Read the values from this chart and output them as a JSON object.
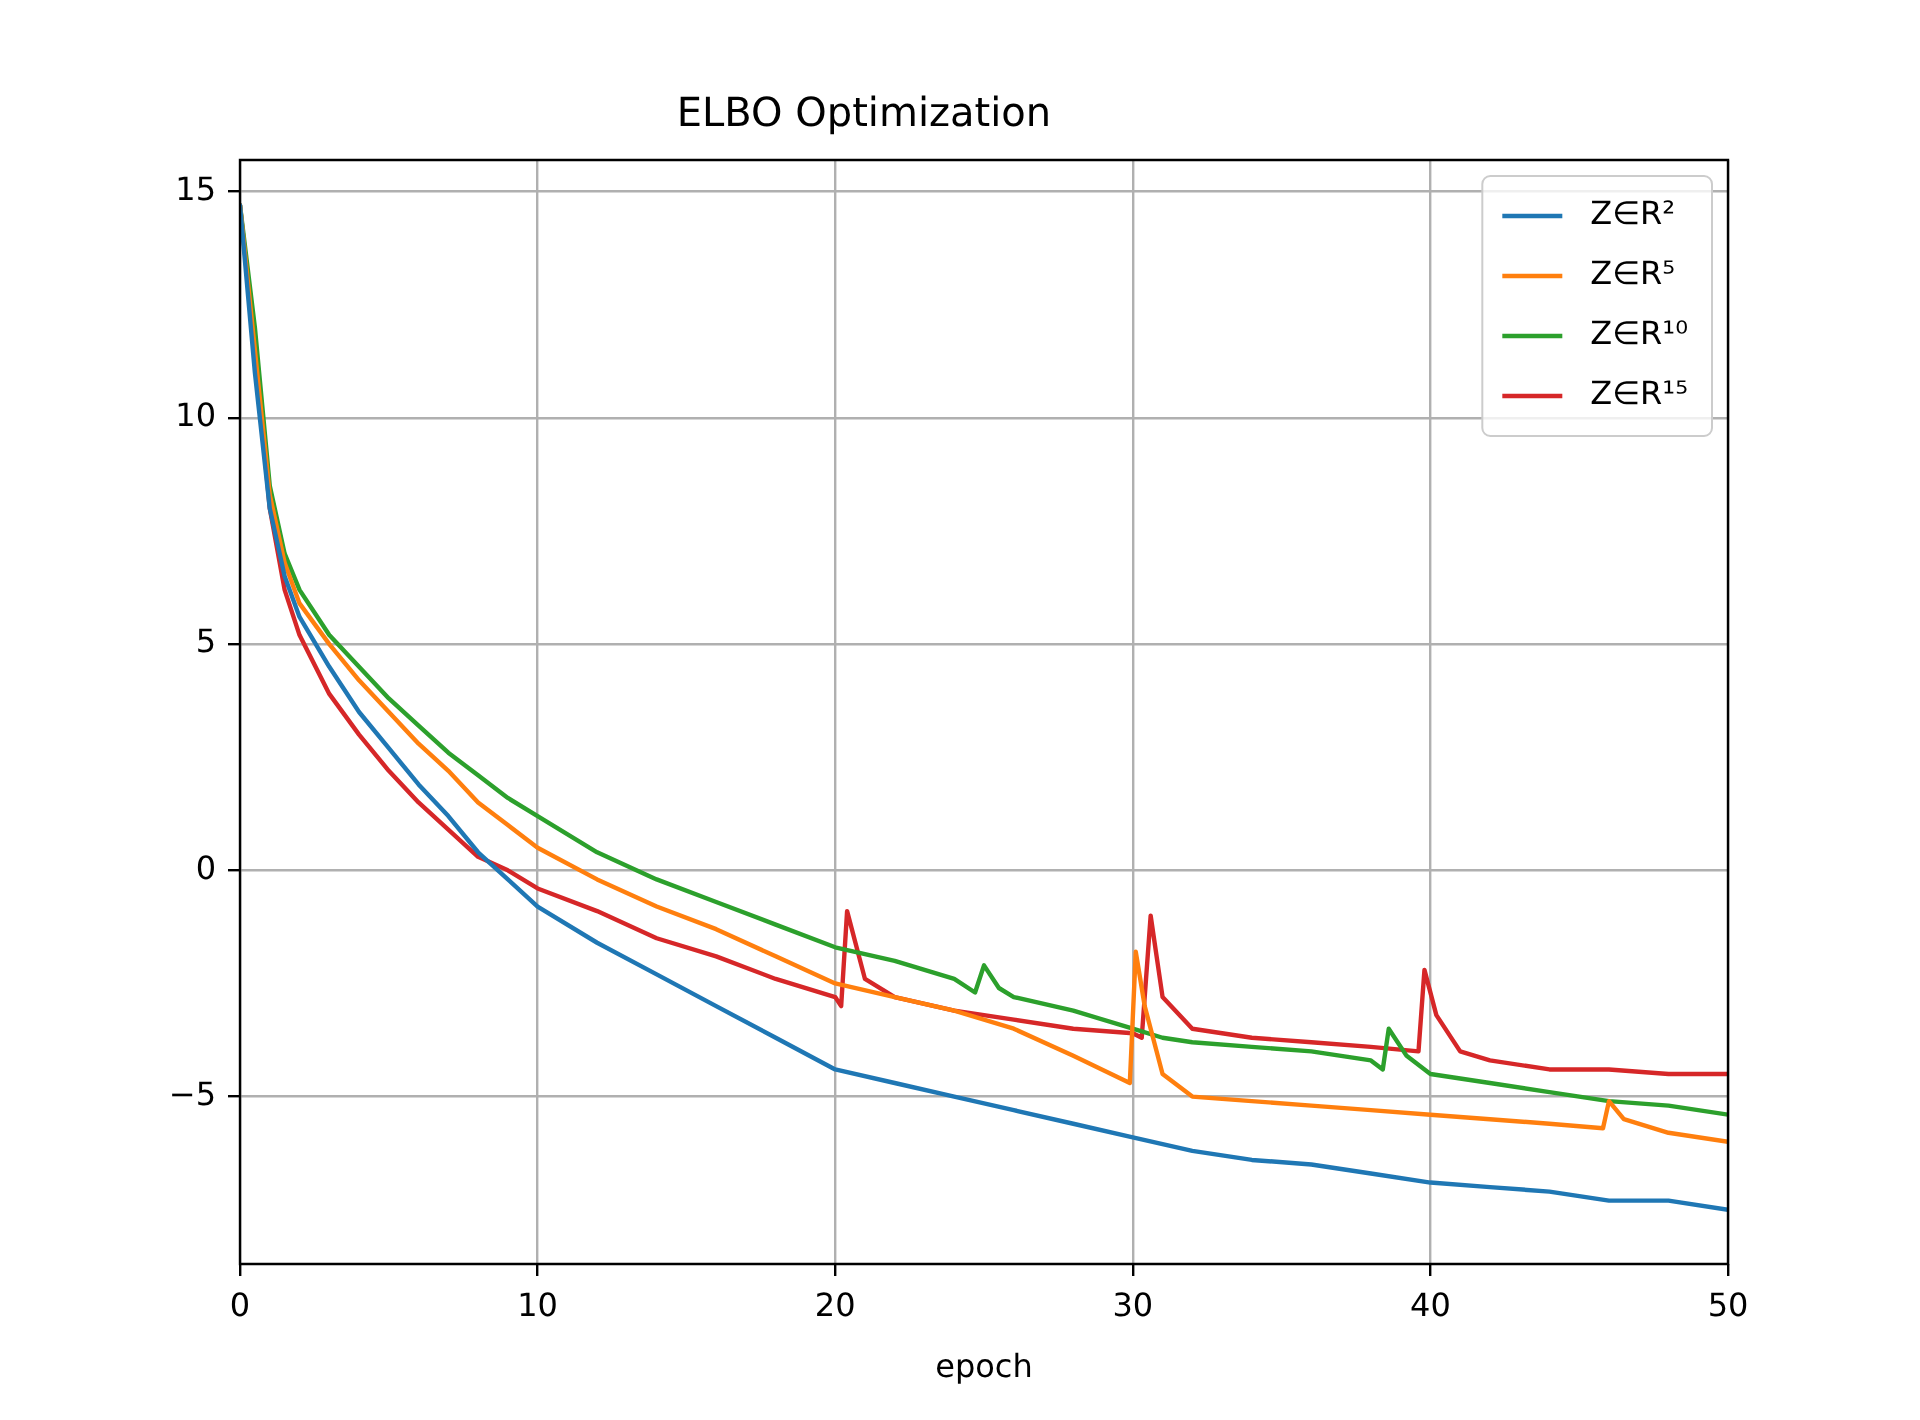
{
  "chart_data": {
    "type": "line",
    "title": "ELBO Optimization",
    "xlabel": "epoch",
    "xlim": [
      0,
      50
    ],
    "xticks": [
      0,
      10,
      20,
      30,
      40,
      50
    ],
    "ylim": [
      -8.7,
      15.7
    ],
    "yticks": [
      -5,
      0,
      5,
      10,
      15
    ],
    "grid": true,
    "legend": "top right",
    "marker": "none",
    "line_style": "solid",
    "series": [
      {
        "name": "Z∈R²",
        "color": "#1f77b4",
        "x": [
          0,
          0.5,
          1,
          1.5,
          2,
          3,
          4,
          5,
          6,
          7,
          8,
          9,
          10,
          12,
          14,
          16,
          18,
          20,
          22,
          24,
          26,
          28,
          30,
          32,
          34,
          36,
          38,
          40,
          42,
          44,
          46,
          48,
          50
        ],
        "values": [
          14.7,
          11,
          8,
          6.5,
          5.6,
          4.5,
          3.5,
          2.7,
          1.9,
          1.2,
          0.4,
          -0.2,
          -0.8,
          -1.6,
          -2.3,
          -3.0,
          -3.7,
          -4.4,
          -4.7,
          -5.0,
          -5.3,
          -5.6,
          -5.9,
          -6.2,
          -6.4,
          -6.5,
          -6.7,
          -6.9,
          -7.0,
          -7.1,
          -7.3,
          -7.3,
          -7.5
        ]
      },
      {
        "name": "Z∈R⁵",
        "color": "#ff7f0e",
        "x": [
          0,
          0.5,
          1,
          1.5,
          2,
          3,
          4,
          5,
          6,
          7,
          8,
          9,
          10,
          12,
          14,
          16,
          18,
          20,
          22,
          24,
          26,
          28,
          29.9,
          30.1,
          30.4,
          31,
          32,
          34,
          36,
          38,
          40,
          42,
          44,
          45.8,
          46,
          46.5,
          48,
          50
        ],
        "values": [
          14.7,
          11.5,
          8.3,
          6.8,
          5.9,
          5.0,
          4.2,
          3.5,
          2.8,
          2.2,
          1.5,
          1.0,
          0.5,
          -0.2,
          -0.8,
          -1.3,
          -1.9,
          -2.5,
          -2.8,
          -3.1,
          -3.5,
          -4.1,
          -4.7,
          -1.8,
          -3.0,
          -4.5,
          -5.0,
          -5.1,
          -5.2,
          -5.3,
          -5.4,
          -5.5,
          -5.6,
          -5.7,
          -5.1,
          -5.5,
          -5.8,
          -6.0
        ]
      },
      {
        "name": "Z∈R¹⁰",
        "color": "#2ca02c",
        "x": [
          0,
          0.5,
          1,
          1.5,
          2,
          3,
          4,
          5,
          6,
          7,
          8,
          9,
          10,
          12,
          14,
          16,
          18,
          20,
          22,
          24,
          24.7,
          25,
          25.5,
          26,
          28,
          30,
          31,
          32,
          34,
          36,
          38,
          38.4,
          38.6,
          39.2,
          40,
          42,
          44,
          46,
          48,
          50
        ],
        "values": [
          14.7,
          12,
          8.5,
          7.0,
          6.2,
          5.2,
          4.5,
          3.8,
          3.2,
          2.6,
          2.1,
          1.6,
          1.2,
          0.4,
          -0.2,
          -0.7,
          -1.2,
          -1.7,
          -2.0,
          -2.4,
          -2.7,
          -2.1,
          -2.6,
          -2.8,
          -3.1,
          -3.5,
          -3.7,
          -3.8,
          -3.9,
          -4.0,
          -4.2,
          -4.4,
          -3.5,
          -4.1,
          -4.5,
          -4.7,
          -4.9,
          -5.1,
          -5.2,
          -5.4
        ]
      },
      {
        "name": "Z∈R¹⁵",
        "color": "#d62728",
        "x": [
          0,
          0.5,
          1,
          1.5,
          2,
          3,
          4,
          5,
          6,
          7,
          8,
          9,
          10,
          12,
          14,
          16,
          18,
          20,
          20.2,
          20.4,
          21,
          22,
          24,
          26,
          28,
          30,
          30.3,
          30.6,
          31,
          32,
          34,
          36,
          38,
          39.6,
          39.8,
          40.2,
          41,
          42,
          44,
          46,
          48,
          50
        ],
        "values": [
          14.7,
          11.5,
          8.0,
          6.2,
          5.2,
          3.9,
          3.0,
          2.2,
          1.5,
          0.9,
          0.3,
          0,
          -0.4,
          -0.9,
          -1.5,
          -1.9,
          -2.4,
          -2.8,
          -3.0,
          -0.9,
          -2.4,
          -2.8,
          -3.1,
          -3.3,
          -3.5,
          -3.6,
          -3.7,
          -1.0,
          -2.8,
          -3.5,
          -3.7,
          -3.8,
          -3.9,
          -4.0,
          -2.2,
          -3.2,
          -4.0,
          -4.2,
          -4.4,
          -4.4,
          -4.5,
          -4.5
        ]
      }
    ]
  }
}
